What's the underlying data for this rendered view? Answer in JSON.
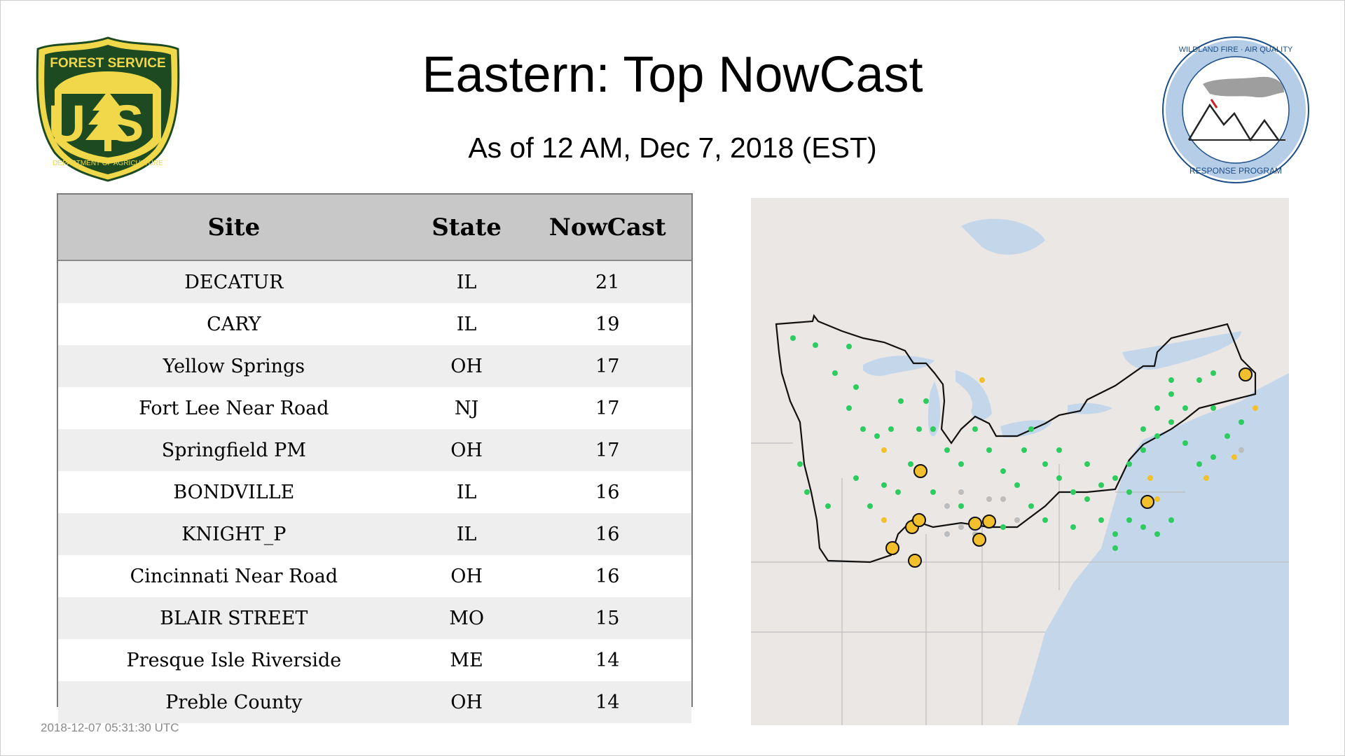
{
  "title": "Eastern: Top NowCast",
  "subtitle": "As of 12 AM, Dec  7, 2018 (EST)",
  "logos": {
    "forest_service": {
      "top_text": "FOREST SERVICE",
      "emblem": "US",
      "bottom_text": "DEPARTMENT OF AGRICULTURE",
      "colors": {
        "green": "#1d4a21",
        "gold": "#f0d84a"
      }
    },
    "wildland_fire": {
      "top_text": "WILDLAND FIRE · AIR QUALITY",
      "bottom_text": "RESPONSE PROGRAM",
      "ring_color": "#b5cde6"
    }
  },
  "table": {
    "headers": [
      "Site",
      "State",
      "NowCast"
    ],
    "rows": [
      {
        "site": "DECATUR",
        "state": "IL",
        "nowcast": "21"
      },
      {
        "site": "CARY",
        "state": "IL",
        "nowcast": "19"
      },
      {
        "site": "Yellow Springs",
        "state": "OH",
        "nowcast": "17"
      },
      {
        "site": "Fort Lee Near Road",
        "state": "NJ",
        "nowcast": "17"
      },
      {
        "site": "Springfield PM",
        "state": "OH",
        "nowcast": "17"
      },
      {
        "site": "BONDVILLE",
        "state": "IL",
        "nowcast": "16"
      },
      {
        "site": "KNIGHT_P",
        "state": "IL",
        "nowcast": "16"
      },
      {
        "site": "Cincinnati Near Road",
        "state": "OH",
        "nowcast": "16"
      },
      {
        "site": "BLAIR STREET",
        "state": "MO",
        "nowcast": "15"
      },
      {
        "site": "Presque Isle Riverside",
        "state": "ME",
        "nowcast": "14"
      },
      {
        "site": "Preble County",
        "state": "OH",
        "nowcast": "14"
      }
    ]
  },
  "map": {
    "colors": {
      "land": "#ebe7e5",
      "water": "#c4d6ea",
      "borders": "#111111",
      "good": "#2ecc5f",
      "moderate": "#f2c02c",
      "nodata": "#bdbdbd"
    }
  },
  "timestamp": "2018-12-07 05:31:30 UTC"
}
